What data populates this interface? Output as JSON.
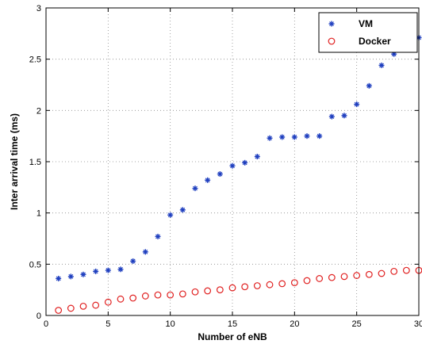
{
  "chart_data": {
    "type": "scatter",
    "title": "",
    "xlabel": "Number of eNB",
    "ylabel": "Inter arrival time (ms)",
    "xlim": [
      0,
      30
    ],
    "ylim": [
      0,
      3
    ],
    "xticks": [
      0,
      5,
      10,
      15,
      20,
      25,
      30
    ],
    "yticks": [
      0,
      0.5,
      1,
      1.5,
      2,
      2.5,
      3
    ],
    "xtick_labels": [
      "0",
      "5",
      "10",
      "15",
      "20",
      "25",
      "30"
    ],
    "ytick_labels": [
      "0",
      "0.5",
      "1",
      "1.5",
      "2",
      "2.5",
      "3"
    ],
    "grid": true,
    "legend_position": "top-right",
    "series": [
      {
        "name": "VM",
        "marker": "asterisk",
        "color": "#1f3fbf",
        "x": [
          1,
          2,
          3,
          4,
          5,
          6,
          7,
          8,
          9,
          10,
          11,
          12,
          13,
          14,
          15,
          16,
          17,
          18,
          19,
          20,
          21,
          22,
          23,
          24,
          25,
          26,
          27,
          28,
          29,
          30
        ],
        "y": [
          0.36,
          0.38,
          0.4,
          0.43,
          0.44,
          0.45,
          0.53,
          0.62,
          0.77,
          0.98,
          1.03,
          1.24,
          1.32,
          1.38,
          1.46,
          1.49,
          1.55,
          1.73,
          1.74,
          1.74,
          1.75,
          1.75,
          1.94,
          1.95,
          2.06,
          2.24,
          2.44,
          2.55,
          2.65,
          2.71
        ]
      },
      {
        "name": "Docker",
        "marker": "circle",
        "color": "#e02020",
        "x": [
          1,
          2,
          3,
          4,
          5,
          6,
          7,
          8,
          9,
          10,
          11,
          12,
          13,
          14,
          15,
          16,
          17,
          18,
          19,
          20,
          21,
          22,
          23,
          24,
          25,
          26,
          27,
          28,
          29,
          30
        ],
        "y": [
          0.05,
          0.07,
          0.09,
          0.1,
          0.13,
          0.16,
          0.17,
          0.19,
          0.2,
          0.2,
          0.21,
          0.23,
          0.24,
          0.25,
          0.27,
          0.28,
          0.29,
          0.3,
          0.31,
          0.32,
          0.34,
          0.36,
          0.37,
          0.38,
          0.39,
          0.4,
          0.41,
          0.43,
          0.44,
          0.44
        ]
      }
    ]
  }
}
